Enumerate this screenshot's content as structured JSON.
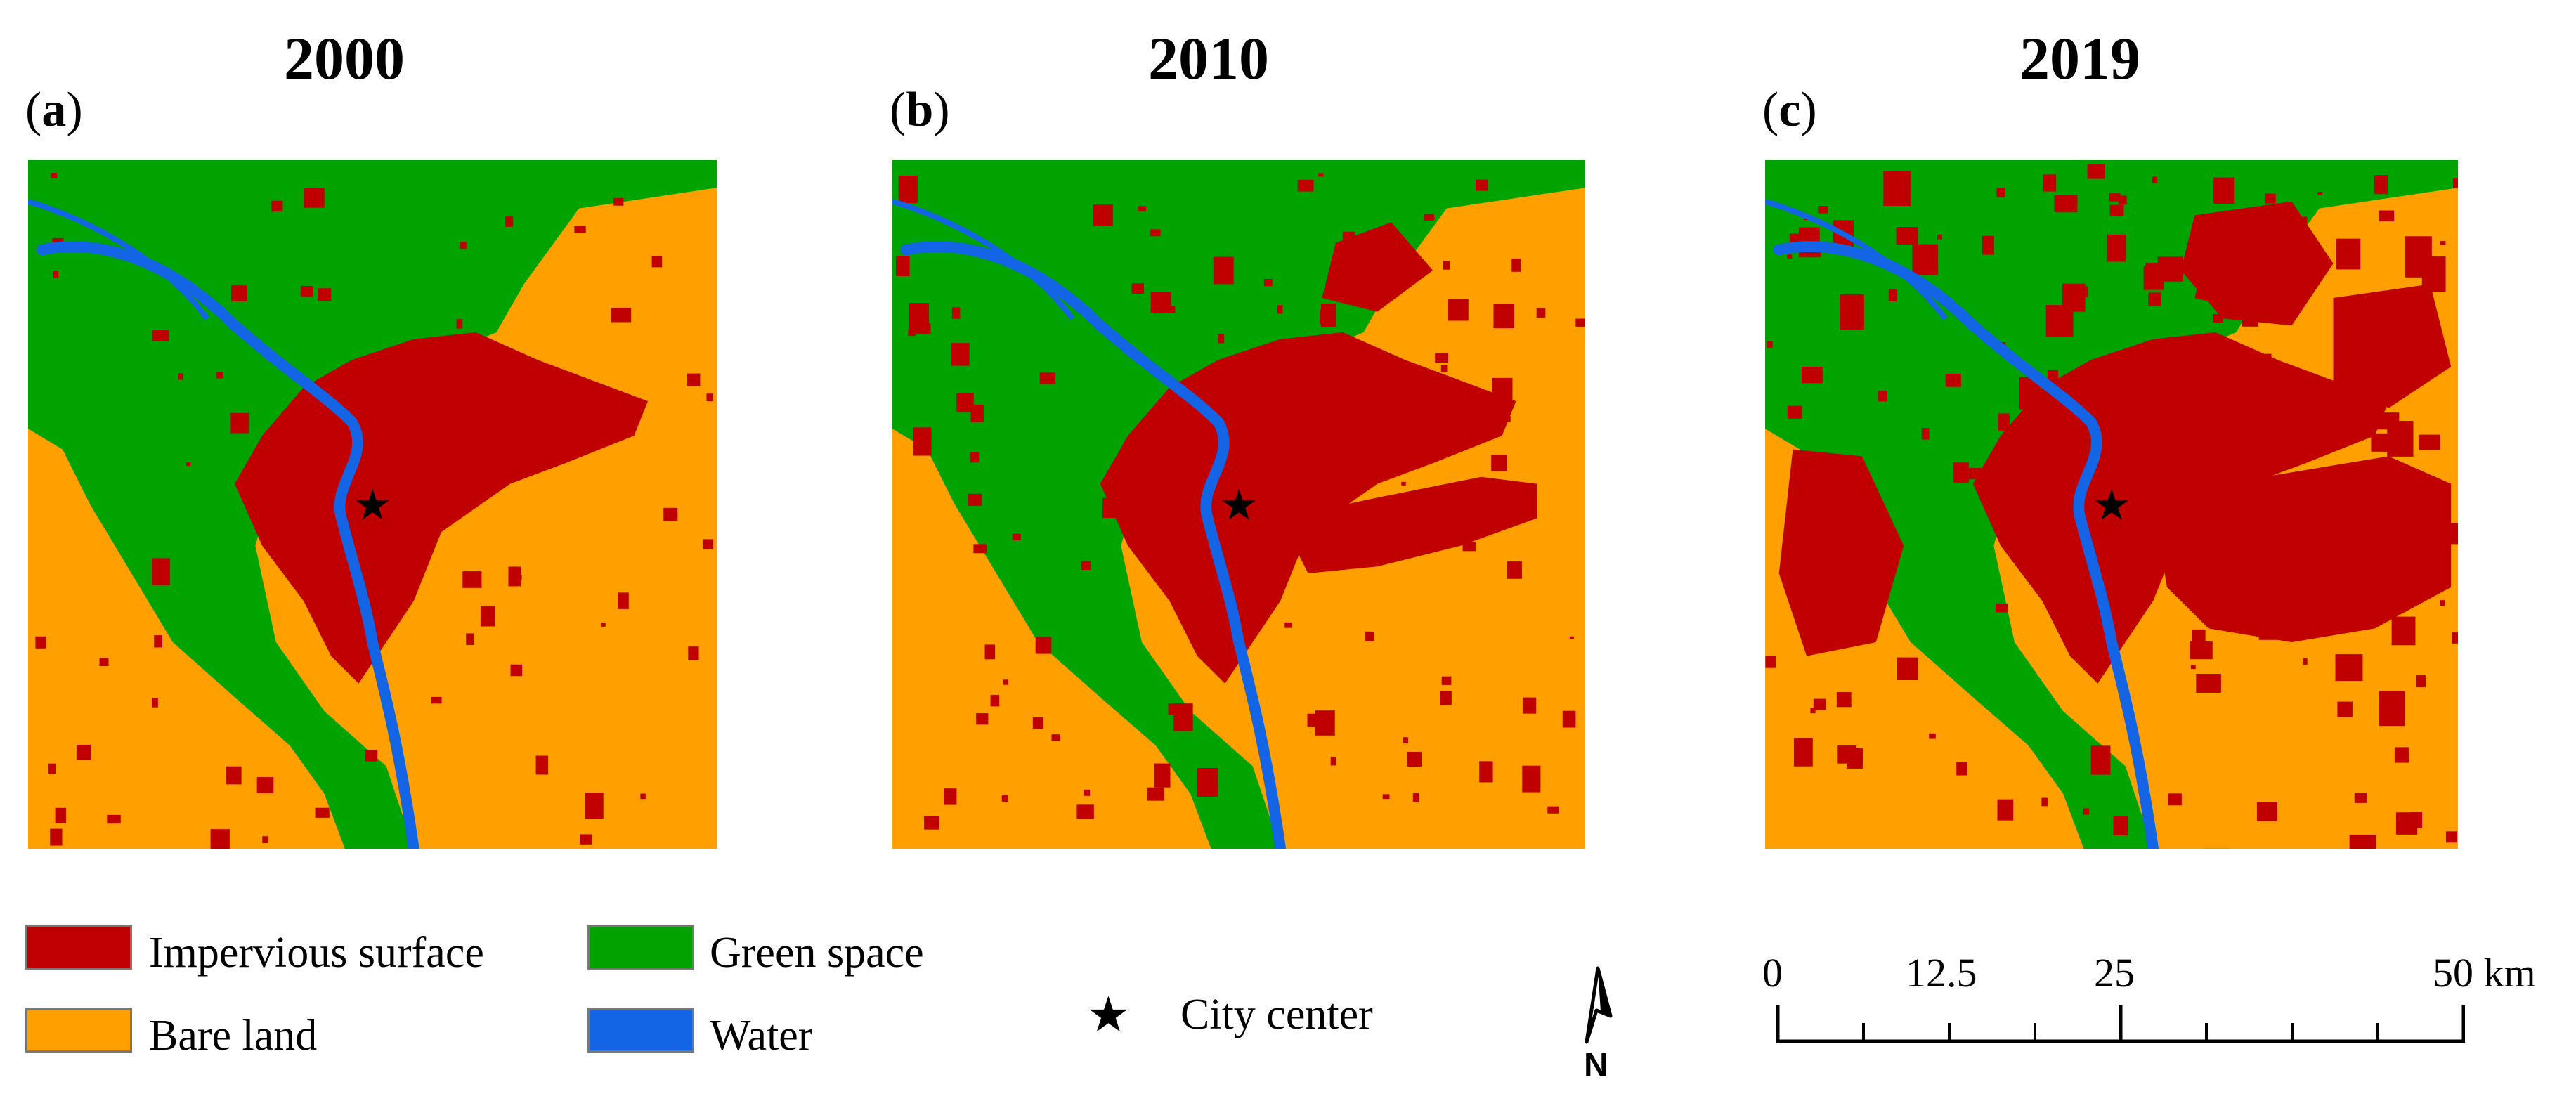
{
  "panels": [
    {
      "label_letter": "a",
      "year": "2000"
    },
    {
      "label_letter": "b",
      "year": "2010"
    },
    {
      "label_letter": "c",
      "year": "2019"
    }
  ],
  "colors": {
    "impervious": "#C00000",
    "bare": "#FF9F00",
    "green": "#00A300",
    "water": "#1464E6"
  },
  "legend": {
    "impervious": "Impervious surface",
    "bare": "Bare land",
    "green": "Green space",
    "water": "Water",
    "city_center": "City center"
  },
  "scalebar": {
    "ticks": [
      "0",
      "12.5",
      "25",
      "50 km"
    ]
  },
  "north_arrow": "N"
}
